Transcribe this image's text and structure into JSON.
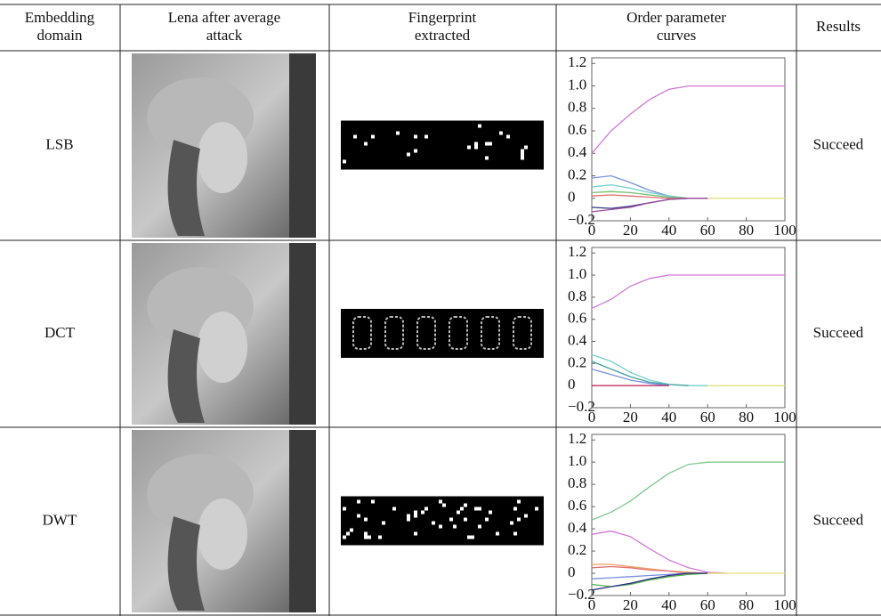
{
  "table": {
    "header": [
      [
        "Embedding",
        "domain"
      ],
      [
        "Lena after average",
        "attack"
      ],
      [
        "Fingerprint",
        "extracted"
      ],
      [
        "Order parameter",
        "curves"
      ],
      [
        "Results"
      ]
    ],
    "rows": [
      [
        "LSB",
        "Succeed"
      ],
      [
        "DCT",
        "Succeed"
      ],
      [
        "DWT",
        "Succeed"
      ]
    ]
  },
  "chart_data": [
    {
      "type": "line",
      "xlim": [
        0,
        100
      ],
      "ylim": [
        -0.2,
        1.25
      ],
      "xticks": [
        0,
        20,
        40,
        60,
        80,
        100
      ],
      "yticks": [
        {
          "value": -0.2,
          "label": "−0.2"
        },
        0,
        0.2,
        0.4,
        0.6,
        0.8,
        {
          "value": 1,
          "label": "1.0"
        },
        1.2
      ],
      "x": [
        0,
        10,
        20,
        30,
        40,
        50,
        60,
        70,
        80,
        90,
        100
      ],
      "series": [
        {
          "color": "#d078d8",
          "values": [
            0.4,
            0.6,
            0.75,
            0.88,
            0.97,
            1.0,
            1.0,
            1.0,
            1.0,
            1.0,
            1.0
          ]
        },
        {
          "color": "#7890e0",
          "values": [
            0.18,
            0.2,
            0.14,
            0.07,
            0.02,
            0,
            0,
            null,
            null,
            null,
            null
          ]
        },
        {
          "color": "#70d0d0",
          "values": [
            0.1,
            0.12,
            0.09,
            0.05,
            0.02,
            0,
            0,
            null,
            null,
            null,
            null
          ]
        },
        {
          "color": "#70c070",
          "values": [
            0.05,
            0.06,
            0.05,
            0.03,
            0.01,
            0,
            0,
            null,
            null,
            null,
            null
          ]
        },
        {
          "color": "#e07070",
          "values": [
            0.02,
            0.03,
            0.02,
            0.01,
            0,
            0,
            0,
            null,
            null,
            null,
            null
          ]
        },
        {
          "color": "#303080",
          "values": [
            -0.08,
            -0.09,
            -0.07,
            -0.04,
            -0.01,
            0,
            0,
            null,
            null,
            null,
            null
          ]
        },
        {
          "color": "#a050a0",
          "values": [
            -0.12,
            -0.1,
            -0.08,
            -0.04,
            -0.01,
            0,
            0,
            null,
            null,
            null,
            null
          ]
        },
        {
          "color": "#e0e080",
          "values": [
            null,
            null,
            null,
            null,
            null,
            null,
            0,
            0,
            0,
            0,
            0
          ]
        }
      ]
    },
    {
      "type": "line",
      "xlim": [
        0,
        100
      ],
      "ylim": [
        -0.2,
        1.25
      ],
      "xticks": [
        0,
        20,
        40,
        60,
        80,
        100
      ],
      "yticks": [
        {
          "value": -0.2,
          "label": "−0.2"
        },
        0,
        0.2,
        0.4,
        0.6,
        0.8,
        {
          "value": 1,
          "label": "1.0"
        },
        1.2
      ],
      "x": [
        0,
        10,
        20,
        30,
        40,
        50,
        60,
        70,
        80,
        90,
        100
      ],
      "series": [
        {
          "color": "#d078d8",
          "values": [
            0.7,
            0.78,
            0.9,
            0.97,
            1.0,
            1.0,
            1.0,
            1.0,
            1.0,
            1.0,
            1.0
          ]
        },
        {
          "color": "#70d0d0",
          "values": [
            0.28,
            0.22,
            0.12,
            0.05,
            0.01,
            0,
            0,
            null,
            null,
            null,
            null
          ]
        },
        {
          "color": "#40a0a0",
          "values": [
            0.22,
            0.15,
            0.08,
            0.03,
            0.01,
            0,
            null,
            null,
            null,
            null,
            null
          ]
        },
        {
          "color": "#7890e0",
          "values": [
            0.15,
            0.1,
            0.05,
            0.02,
            0,
            null,
            null,
            null,
            null,
            null,
            null
          ]
        },
        {
          "color": "#c03060",
          "values": [
            0,
            0,
            0,
            0,
            0,
            null,
            null,
            null,
            null,
            null,
            null
          ]
        },
        {
          "color": "#e0e080",
          "values": [
            null,
            null,
            null,
            null,
            null,
            null,
            0,
            0,
            0,
            0,
            0
          ]
        }
      ]
    },
    {
      "type": "line",
      "xlim": [
        0,
        100
      ],
      "ylim": [
        -0.2,
        1.25
      ],
      "xticks": [
        0,
        20,
        40,
        60,
        80,
        100
      ],
      "yticks": [
        {
          "value": -0.2,
          "label": "−0.2"
        },
        0,
        0.2,
        0.4,
        0.6,
        0.8,
        {
          "value": 1,
          "label": "1.0"
        },
        1.2
      ],
      "x": [
        0,
        10,
        20,
        30,
        40,
        50,
        60,
        70,
        80,
        90,
        100
      ],
      "series": [
        {
          "color": "#80c890",
          "values": [
            0.48,
            0.55,
            0.65,
            0.78,
            0.9,
            0.98,
            1.0,
            1.0,
            1.0,
            1.0,
            1.0
          ]
        },
        {
          "color": "#d078d8",
          "values": [
            0.35,
            0.38,
            0.33,
            0.22,
            0.12,
            0.05,
            0.01,
            0,
            null,
            null,
            null
          ]
        },
        {
          "color": "#f0a060",
          "values": [
            0.08,
            0.08,
            0.06,
            0.04,
            0.02,
            0.01,
            0,
            0,
            null,
            null,
            null
          ]
        },
        {
          "color": "#e07070",
          "values": [
            0.05,
            0.06,
            0.05,
            0.03,
            0.02,
            0,
            0,
            null,
            null,
            null,
            null
          ]
        },
        {
          "color": "#7890e0",
          "values": [
            -0.05,
            -0.04,
            -0.03,
            -0.02,
            -0.01,
            0,
            0,
            null,
            null,
            null,
            null
          ]
        },
        {
          "color": "#50b050",
          "values": [
            -0.1,
            -0.12,
            -0.1,
            -0.06,
            -0.03,
            -0.01,
            0,
            null,
            null,
            null,
            null
          ]
        },
        {
          "color": "#303080",
          "values": [
            -0.15,
            -0.12,
            -0.09,
            -0.05,
            -0.02,
            0,
            0,
            null,
            null,
            null,
            null
          ]
        },
        {
          "color": "#e0e080",
          "values": [
            null,
            null,
            null,
            null,
            null,
            null,
            0,
            0,
            0,
            0,
            0
          ]
        }
      ]
    }
  ]
}
